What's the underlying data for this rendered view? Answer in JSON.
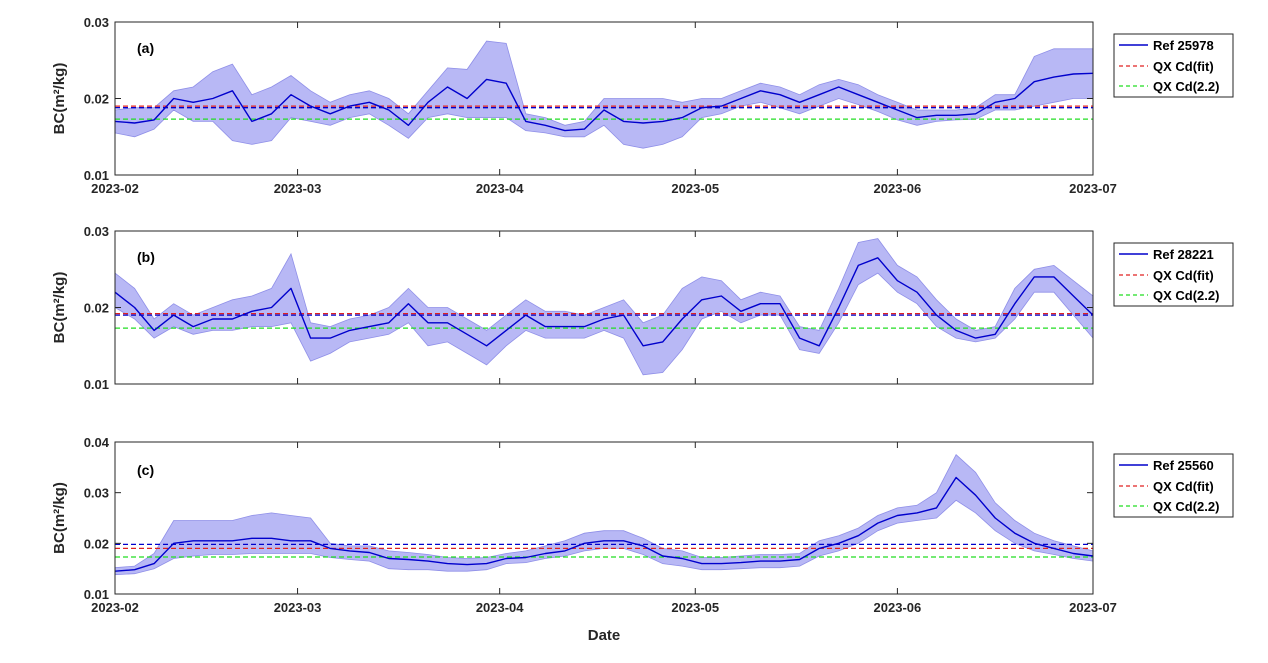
{
  "figure": {
    "xlabel": "Date",
    "colors": {
      "ref_line": "#0000CC",
      "band_fill": "#B8B8F5",
      "band_edge": "#8F8FE8",
      "fit_line": "#E02020",
      "cd22_line": "#22DD22",
      "frame": "#262626"
    }
  },
  "chart_data": [
    {
      "type": "line",
      "panel": "(a)",
      "ylabel": "BC(m²/kg)",
      "ylim": [
        0.01,
        0.03
      ],
      "yticks": [
        "0.01",
        "0.02",
        "0.03"
      ],
      "xlim": [
        "2023-02-01",
        "2023-07-01"
      ],
      "xticks": [
        "2023-02",
        "2023-03",
        "2023-04",
        "2023-05",
        "2023-06",
        "2023-07"
      ],
      "grid": false,
      "legend_position": "right",
      "series": [
        {
          "name": "Ref 25978",
          "style": "solid",
          "x": [
            "2023-02-01",
            "2023-02-04",
            "2023-02-07",
            "2023-02-10",
            "2023-02-13",
            "2023-02-16",
            "2023-02-19",
            "2023-02-22",
            "2023-02-25",
            "2023-02-28",
            "2023-03-03",
            "2023-03-06",
            "2023-03-09",
            "2023-03-12",
            "2023-03-15",
            "2023-03-18",
            "2023-03-21",
            "2023-03-24",
            "2023-03-27",
            "2023-03-30",
            "2023-04-02",
            "2023-04-05",
            "2023-04-08",
            "2023-04-11",
            "2023-04-14",
            "2023-04-17",
            "2023-04-20",
            "2023-04-23",
            "2023-04-26",
            "2023-04-29",
            "2023-05-02",
            "2023-05-05",
            "2023-05-08",
            "2023-05-11",
            "2023-05-14",
            "2023-05-17",
            "2023-05-20",
            "2023-05-23",
            "2023-05-26",
            "2023-05-29",
            "2023-06-01",
            "2023-06-04",
            "2023-06-07",
            "2023-06-10",
            "2023-06-13",
            "2023-06-16",
            "2023-06-19",
            "2023-06-22",
            "2023-06-25",
            "2023-06-28",
            "2023-07-01"
          ],
          "y": [
            0.017,
            0.0168,
            0.0172,
            0.02,
            0.0195,
            0.02,
            0.021,
            0.017,
            0.018,
            0.0205,
            0.019,
            0.018,
            0.019,
            0.0195,
            0.0185,
            0.0165,
            0.0195,
            0.0215,
            0.02,
            0.0225,
            0.022,
            0.017,
            0.0165,
            0.0158,
            0.016,
            0.0185,
            0.017,
            0.0168,
            0.017,
            0.0175,
            0.0188,
            0.019,
            0.02,
            0.021,
            0.0205,
            0.0195,
            0.0205,
            0.0215,
            0.0205,
            0.0195,
            0.0185,
            0.0175,
            0.0178,
            0.0178,
            0.018,
            0.0195,
            0.02,
            0.0222,
            0.0228,
            0.0232,
            0.0233
          ]
        },
        {
          "name": "Ref 25978 band",
          "x_ref": "same as Ref 25978",
          "lower": [
            0.0155,
            0.015,
            0.016,
            0.0185,
            0.017,
            0.017,
            0.0145,
            0.014,
            0.0145,
            0.0175,
            0.017,
            0.0165,
            0.0175,
            0.018,
            0.0165,
            0.0148,
            0.0175,
            0.018,
            0.0175,
            0.0175,
            0.0175,
            0.0158,
            0.0155,
            0.015,
            0.015,
            0.0165,
            0.014,
            0.0135,
            0.014,
            0.015,
            0.0175,
            0.018,
            0.019,
            0.0195,
            0.0188,
            0.018,
            0.019,
            0.02,
            0.0192,
            0.0183,
            0.0172,
            0.0165,
            0.017,
            0.0172,
            0.0173,
            0.0185,
            0.0185,
            0.019,
            0.0195,
            0.02,
            0.02
          ],
          "upper": [
            0.0185,
            0.0188,
            0.0188,
            0.021,
            0.0215,
            0.0235,
            0.0245,
            0.0205,
            0.0215,
            0.023,
            0.021,
            0.0195,
            0.0205,
            0.021,
            0.02,
            0.018,
            0.021,
            0.024,
            0.0238,
            0.0275,
            0.0272,
            0.018,
            0.0175,
            0.0165,
            0.017,
            0.02,
            0.02,
            0.02,
            0.02,
            0.0195,
            0.02,
            0.02,
            0.021,
            0.022,
            0.0215,
            0.0205,
            0.0218,
            0.0225,
            0.0218,
            0.0205,
            0.0195,
            0.0185,
            0.0185,
            0.0185,
            0.0188,
            0.0205,
            0.0205,
            0.0255,
            0.0265,
            0.0265,
            0.0265
          ]
        },
        {
          "name": "QX Cd(fit)",
          "style": "dashed",
          "value": 0.019,
          "ref_overlay_value": 0.0188
        },
        {
          "name": "QX Cd(2.2)",
          "style": "dashed",
          "value": 0.0173
        }
      ]
    },
    {
      "type": "line",
      "panel": "(b)",
      "ylabel": "BC(m²/kg)",
      "ylim": [
        0.01,
        0.03
      ],
      "yticks": [
        "0.01",
        "0.02",
        "0.03"
      ],
      "xlim": [
        "2023-02-01",
        "2023-07-01"
      ],
      "grid": false,
      "legend_position": "right",
      "series": [
        {
          "name": "Ref 28221",
          "style": "solid",
          "x": [
            "2023-02-01",
            "2023-02-04",
            "2023-02-07",
            "2023-02-10",
            "2023-02-13",
            "2023-02-16",
            "2023-02-19",
            "2023-02-22",
            "2023-02-25",
            "2023-02-28",
            "2023-03-03",
            "2023-03-06",
            "2023-03-09",
            "2023-03-12",
            "2023-03-15",
            "2023-03-18",
            "2023-03-21",
            "2023-03-24",
            "2023-03-27",
            "2023-03-30",
            "2023-04-02",
            "2023-04-05",
            "2023-04-08",
            "2023-04-11",
            "2023-04-14",
            "2023-04-17",
            "2023-04-20",
            "2023-04-23",
            "2023-04-26",
            "2023-04-29",
            "2023-05-02",
            "2023-05-05",
            "2023-05-08",
            "2023-05-11",
            "2023-05-14",
            "2023-05-17",
            "2023-05-20",
            "2023-05-23",
            "2023-05-26",
            "2023-05-29",
            "2023-06-01",
            "2023-06-04",
            "2023-06-07",
            "2023-06-10",
            "2023-06-13",
            "2023-06-16",
            "2023-06-19",
            "2023-06-22",
            "2023-06-25",
            "2023-06-28",
            "2023-07-01"
          ],
          "y": [
            0.022,
            0.02,
            0.017,
            0.019,
            0.0175,
            0.0185,
            0.0185,
            0.0195,
            0.02,
            0.0225,
            0.016,
            0.016,
            0.017,
            0.0175,
            0.018,
            0.0205,
            0.018,
            0.018,
            0.0165,
            0.015,
            0.017,
            0.019,
            0.0175,
            0.0175,
            0.0175,
            0.0185,
            0.019,
            0.015,
            0.0155,
            0.0185,
            0.021,
            0.0215,
            0.0195,
            0.0205,
            0.0205,
            0.016,
            0.015,
            0.02,
            0.0255,
            0.0265,
            0.0235,
            0.022,
            0.019,
            0.017,
            0.016,
            0.0165,
            0.0205,
            0.024,
            0.024,
            0.0215,
            0.019
          ]
        },
        {
          "name": "Ref 28221 band",
          "x_ref": "same as Ref 28221",
          "lower": [
            0.02,
            0.0185,
            0.016,
            0.0175,
            0.0165,
            0.017,
            0.017,
            0.0175,
            0.0175,
            0.018,
            0.013,
            0.014,
            0.0155,
            0.016,
            0.0165,
            0.018,
            0.015,
            0.0155,
            0.014,
            0.0125,
            0.015,
            0.017,
            0.016,
            0.016,
            0.016,
            0.017,
            0.016,
            0.0112,
            0.0115,
            0.0145,
            0.0185,
            0.0195,
            0.018,
            0.019,
            0.019,
            0.0145,
            0.014,
            0.018,
            0.023,
            0.0245,
            0.022,
            0.0205,
            0.0175,
            0.016,
            0.0155,
            0.016,
            0.0185,
            0.022,
            0.022,
            0.019,
            0.016
          ],
          "upper": [
            0.0245,
            0.0225,
            0.0185,
            0.0205,
            0.019,
            0.02,
            0.021,
            0.0215,
            0.0225,
            0.027,
            0.018,
            0.0175,
            0.0185,
            0.019,
            0.02,
            0.0225,
            0.02,
            0.02,
            0.0185,
            0.017,
            0.019,
            0.021,
            0.0195,
            0.0195,
            0.019,
            0.02,
            0.021,
            0.018,
            0.019,
            0.0225,
            0.024,
            0.0235,
            0.021,
            0.022,
            0.0215,
            0.0175,
            0.017,
            0.0225,
            0.0285,
            0.029,
            0.0255,
            0.024,
            0.021,
            0.0185,
            0.017,
            0.0175,
            0.0225,
            0.025,
            0.0255,
            0.0235,
            0.0215
          ]
        },
        {
          "name": "QX Cd(fit)",
          "style": "dashed",
          "value": 0.0192,
          "ref_overlay_value": 0.019
        },
        {
          "name": "QX Cd(2.2)",
          "style": "dashed",
          "value": 0.0173
        }
      ]
    },
    {
      "type": "line",
      "panel": "(c)",
      "ylabel": "BC(m²/kg)",
      "ylim": [
        0.01,
        0.04
      ],
      "yticks": [
        "0.01",
        "0.02",
        "0.03",
        "0.04"
      ],
      "xlim": [
        "2023-02-01",
        "2023-07-01"
      ],
      "xticks": [
        "2023-02",
        "2023-03",
        "2023-04",
        "2023-05",
        "2023-06",
        "2023-07"
      ],
      "grid": false,
      "legend_position": "right",
      "series": [
        {
          "name": "Ref 25560",
          "style": "solid",
          "x": [
            "2023-02-01",
            "2023-02-04",
            "2023-02-07",
            "2023-02-10",
            "2023-02-13",
            "2023-02-16",
            "2023-02-19",
            "2023-02-22",
            "2023-02-25",
            "2023-02-28",
            "2023-03-03",
            "2023-03-06",
            "2023-03-09",
            "2023-03-12",
            "2023-03-15",
            "2023-03-18",
            "2023-03-21",
            "2023-03-24",
            "2023-03-27",
            "2023-03-30",
            "2023-04-02",
            "2023-04-05",
            "2023-04-08",
            "2023-04-11",
            "2023-04-14",
            "2023-04-17",
            "2023-04-20",
            "2023-04-23",
            "2023-04-26",
            "2023-04-29",
            "2023-05-02",
            "2023-05-05",
            "2023-05-08",
            "2023-05-11",
            "2023-05-14",
            "2023-05-17",
            "2023-05-20",
            "2023-05-23",
            "2023-05-26",
            "2023-05-29",
            "2023-06-01",
            "2023-06-04",
            "2023-06-07",
            "2023-06-10",
            "2023-06-13",
            "2023-06-16",
            "2023-06-19",
            "2023-06-22",
            "2023-06-25",
            "2023-06-28",
            "2023-07-01"
          ],
          "y": [
            0.0145,
            0.0148,
            0.016,
            0.02,
            0.0205,
            0.0205,
            0.0205,
            0.021,
            0.021,
            0.0205,
            0.0205,
            0.019,
            0.0185,
            0.0182,
            0.017,
            0.0168,
            0.0165,
            0.016,
            0.0158,
            0.016,
            0.017,
            0.0172,
            0.018,
            0.0185,
            0.02,
            0.0205,
            0.0205,
            0.0195,
            0.0175,
            0.017,
            0.016,
            0.016,
            0.0162,
            0.0165,
            0.0165,
            0.0168,
            0.019,
            0.02,
            0.0215,
            0.024,
            0.0255,
            0.026,
            0.027,
            0.033,
            0.0295,
            0.025,
            0.022,
            0.02,
            0.019,
            0.018,
            0.0175
          ]
        },
        {
          "name": "Ref 25560 band",
          "x_ref": "same as Ref 25560",
          "lower": [
            0.0138,
            0.014,
            0.015,
            0.017,
            0.0175,
            0.0178,
            0.0178,
            0.018,
            0.018,
            0.018,
            0.018,
            0.0172,
            0.0168,
            0.0165,
            0.015,
            0.0148,
            0.0148,
            0.0145,
            0.0145,
            0.0148,
            0.016,
            0.0162,
            0.017,
            0.0175,
            0.0185,
            0.019,
            0.019,
            0.0178,
            0.016,
            0.0155,
            0.0148,
            0.0148,
            0.015,
            0.0152,
            0.0152,
            0.0155,
            0.0175,
            0.0185,
            0.02,
            0.0225,
            0.024,
            0.0245,
            0.025,
            0.0285,
            0.026,
            0.0225,
            0.02,
            0.0185,
            0.0178,
            0.017,
            0.0165
          ],
          "upper": [
            0.0152,
            0.0155,
            0.018,
            0.0245,
            0.0245,
            0.0245,
            0.0245,
            0.0255,
            0.026,
            0.0255,
            0.025,
            0.02,
            0.0195,
            0.0195,
            0.0185,
            0.0182,
            0.0178,
            0.0172,
            0.017,
            0.0172,
            0.018,
            0.0185,
            0.0195,
            0.0205,
            0.022,
            0.0225,
            0.0225,
            0.021,
            0.019,
            0.0185,
            0.0172,
            0.0172,
            0.0175,
            0.0178,
            0.0178,
            0.018,
            0.0205,
            0.0215,
            0.023,
            0.0255,
            0.027,
            0.0275,
            0.03,
            0.0375,
            0.034,
            0.028,
            0.0245,
            0.022,
            0.0205,
            0.0195,
            0.0185
          ]
        },
        {
          "name": "QX Cd(fit)",
          "style": "dashed",
          "value": 0.019,
          "ref_overlay_value": 0.0198
        },
        {
          "name": "QX Cd(2.2)",
          "style": "dashed",
          "value": 0.0173
        }
      ]
    }
  ]
}
